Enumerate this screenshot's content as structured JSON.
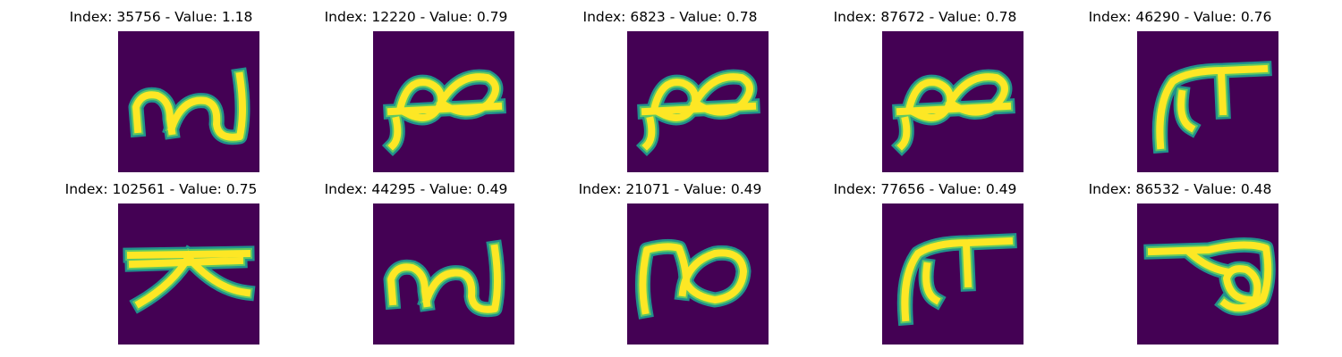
{
  "colors": {
    "background": "#440154",
    "stroke_edge": "#21918c",
    "stroke_mid": "#5ec962",
    "stroke_core": "#fde725"
  },
  "panels": [
    {
      "index": "35756",
      "value": "1.18",
      "title": "Index: 35756 - Value: 1.18",
      "glyph": "glyph-a"
    },
    {
      "index": "12220",
      "value": "0.79",
      "title": "Index: 12220 - Value: 0.79",
      "glyph": "glyph-b"
    },
    {
      "index": "6823",
      "value": "0.78",
      "title": "Index: 6823 - Value: 0.78",
      "glyph": "glyph-b"
    },
    {
      "index": "87672",
      "value": "0.78",
      "title": "Index: 87672 - Value: 0.78",
      "glyph": "glyph-b"
    },
    {
      "index": "46290",
      "value": "0.76",
      "title": "Index: 46290 - Value: 0.76",
      "glyph": "glyph-c"
    },
    {
      "index": "102561",
      "value": "0.75",
      "title": "Index: 102561 - Value: 0.75",
      "glyph": "glyph-d"
    },
    {
      "index": "44295",
      "value": "0.49",
      "title": "Index: 44295 - Value: 0.49",
      "glyph": "glyph-a"
    },
    {
      "index": "21071",
      "value": "0.49",
      "title": "Index: 21071 - Value: 0.49",
      "glyph": "glyph-e"
    },
    {
      "index": "77656",
      "value": "0.49",
      "title": "Index: 77656 - Value: 0.49",
      "glyph": "glyph-c"
    },
    {
      "index": "86532",
      "value": "0.48",
      "title": "Index: 86532 - Value: 0.48",
      "glyph": "glyph-f"
    }
  ]
}
